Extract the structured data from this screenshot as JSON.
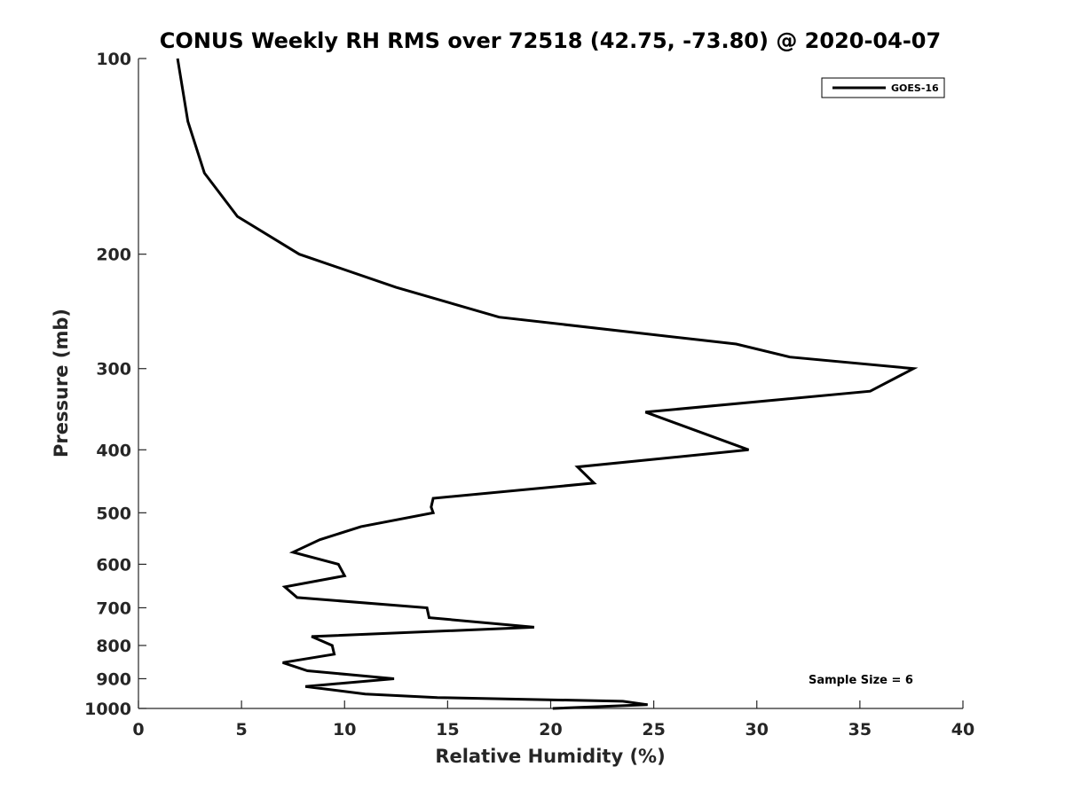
{
  "chart_data": {
    "type": "line",
    "title": "CONUS Weekly RH RMS over 72518 (42.75, -73.80) @ 2020-04-07",
    "xlabel": "Relative Humidity (%)",
    "ylabel": "Pressure (mb)",
    "xlim": [
      0,
      40
    ],
    "ylim": [
      100,
      1000
    ],
    "yscale": "log",
    "y_reversed": true,
    "xticks": [
      0,
      5,
      10,
      15,
      20,
      25,
      30,
      35,
      40
    ],
    "yticks": [
      100,
      200,
      300,
      400,
      500,
      600,
      700,
      800,
      900,
      1000
    ],
    "grid": false,
    "legend_placement": "top-right",
    "annotation": "Sample Size = 6",
    "colors": {
      "series": "#000000",
      "axis": "#262626"
    },
    "series": [
      {
        "name": "GOES-16",
        "points": [
          {
            "x": 1.9,
            "p": 100
          },
          {
            "x": 2.4,
            "p": 125
          },
          {
            "x": 3.2,
            "p": 150
          },
          {
            "x": 4.8,
            "p": 175
          },
          {
            "x": 7.8,
            "p": 200
          },
          {
            "x": 12.5,
            "p": 225
          },
          {
            "x": 17.5,
            "p": 250
          },
          {
            "x": 29.0,
            "p": 275
          },
          {
            "x": 31.6,
            "p": 288
          },
          {
            "x": 37.6,
            "p": 300
          },
          {
            "x": 35.5,
            "p": 325
          },
          {
            "x": 24.6,
            "p": 350
          },
          {
            "x": 29.6,
            "p": 400
          },
          {
            "x": 21.3,
            "p": 425
          },
          {
            "x": 22.1,
            "p": 450
          },
          {
            "x": 14.3,
            "p": 475
          },
          {
            "x": 14.2,
            "p": 490
          },
          {
            "x": 14.3,
            "p": 500
          },
          {
            "x": 10.8,
            "p": 525
          },
          {
            "x": 8.8,
            "p": 550
          },
          {
            "x": 7.5,
            "p": 575
          },
          {
            "x": 9.7,
            "p": 600
          },
          {
            "x": 10.0,
            "p": 625
          },
          {
            "x": 7.1,
            "p": 650
          },
          {
            "x": 7.7,
            "p": 675
          },
          {
            "x": 14.0,
            "p": 700
          },
          {
            "x": 14.1,
            "p": 725
          },
          {
            "x": 19.2,
            "p": 750
          },
          {
            "x": 8.4,
            "p": 775
          },
          {
            "x": 9.4,
            "p": 800
          },
          {
            "x": 9.5,
            "p": 825
          },
          {
            "x": 7.0,
            "p": 850
          },
          {
            "x": 8.2,
            "p": 875
          },
          {
            "x": 12.4,
            "p": 900
          },
          {
            "x": 8.1,
            "p": 925
          },
          {
            "x": 11.0,
            "p": 950
          },
          {
            "x": 14.5,
            "p": 962
          },
          {
            "x": 23.5,
            "p": 975
          },
          {
            "x": 24.7,
            "p": 987
          },
          {
            "x": 20.1,
            "p": 1000
          }
        ]
      }
    ]
  }
}
